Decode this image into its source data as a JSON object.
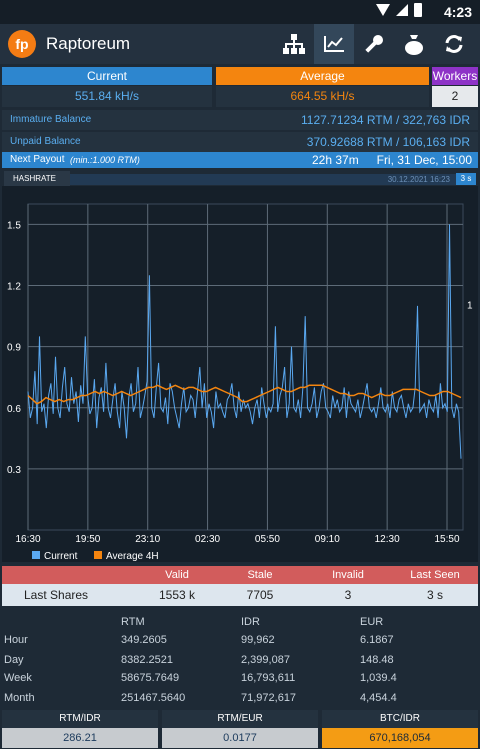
{
  "status_bar": {
    "time": "4:23"
  },
  "app": {
    "title": "Raptoreum",
    "logo_text": "fp"
  },
  "toolbar": {
    "icons": [
      "network-icon",
      "chart-icon",
      "wrench-icon",
      "moneybag-icon",
      "refresh-icon"
    ]
  },
  "stats": {
    "current_label": "Current",
    "current_value": "551.84 kH/s",
    "average_label": "Average",
    "average_value": "664.55 kH/s",
    "workers_label": "Workers",
    "workers_value": "2"
  },
  "balance": {
    "immature_label": "Immature Balance",
    "immature_value": "1127.71234 RTM / 322,763 IDR",
    "unpaid_label": "Unpaid Balance",
    "unpaid_value": "370.92688 RTM / 106,163 IDR"
  },
  "payout": {
    "label": "Next Payout",
    "min_note": "(min.:1.000 RTM)",
    "countdown": "22h 37m",
    "date": "Fri, 31 Dec, 15:00"
  },
  "hashrate_tab": {
    "label": "HASHRATE",
    "timestamp": "30.12.2021 16:23",
    "interval": "3 s"
  },
  "chart_data": {
    "type": "line",
    "x_ticks": [
      "16:30",
      "19:50",
      "23:10",
      "02:30",
      "05:50",
      "09:10",
      "12:30",
      "15:50"
    ],
    "y_ticks": [
      "0.3",
      "0.6",
      "0.9",
      "1.2",
      "1.5"
    ],
    "ylim": [
      0,
      1.6
    ],
    "right_label": "1",
    "series": [
      {
        "name": "Current",
        "color": "#5aa8f0",
        "values": [
          0.68,
          0.55,
          0.6,
          0.78,
          0.52,
          0.95,
          0.58,
          0.62,
          0.5,
          0.66,
          0.72,
          0.57,
          0.85,
          0.6,
          0.55,
          0.7,
          0.8,
          0.62,
          0.58,
          0.75,
          0.62,
          0.68,
          0.53,
          0.71,
          0.62,
          0.95,
          0.66,
          0.57,
          0.6,
          0.74,
          0.5,
          0.65,
          0.7,
          0.58,
          0.82,
          0.6,
          0.55,
          0.64,
          0.72,
          0.58,
          0.5,
          0.68,
          0.6,
          0.45,
          0.65,
          0.72,
          0.58,
          0.62,
          0.8,
          0.55,
          0.6,
          0.66,
          0.73,
          1.25,
          0.6,
          0.55,
          0.7,
          0.82,
          0.6,
          0.58,
          0.65,
          0.52,
          0.72,
          0.68,
          0.6,
          0.55,
          0.5,
          0.62,
          0.7,
          0.58,
          0.6,
          0.66,
          0.64,
          0.55,
          0.68,
          0.8,
          0.6,
          0.72,
          0.55,
          0.62,
          0.58,
          0.5,
          0.68,
          0.6,
          0.62,
          0.58,
          0.55,
          0.64,
          0.66,
          0.72,
          0.6,
          0.55,
          0.68,
          0.58,
          0.64,
          0.6,
          0.62,
          0.58,
          0.52,
          0.6,
          0.64,
          0.55,
          0.7,
          0.62,
          0.55,
          0.6,
          0.58,
          0.62,
          1.0,
          0.58,
          0.66,
          0.7,
          0.8,
          0.55,
          0.62,
          0.9,
          0.6,
          0.58,
          0.64,
          0.55,
          0.7,
          1.05,
          0.6,
          0.58,
          0.62,
          0.7,
          0.55,
          0.6,
          0.68,
          0.72,
          0.6,
          0.58,
          0.55,
          0.66,
          0.6,
          0.64,
          0.58,
          0.6,
          0.7,
          0.55,
          0.68,
          0.62,
          0.6,
          0.58,
          0.64,
          0.55,
          0.6,
          0.66,
          0.72,
          0.6,
          0.58,
          0.6,
          0.55,
          0.62,
          0.7,
          0.6,
          0.58,
          0.62,
          0.55,
          0.68,
          0.6,
          0.58,
          0.64,
          0.66,
          0.6,
          0.55,
          0.62,
          0.58,
          0.6,
          0.7,
          1.1,
          0.58,
          0.6,
          0.62,
          0.55,
          0.64,
          0.6,
          0.58,
          0.66,
          0.55,
          0.72,
          0.6,
          0.62,
          0.58,
          1.5,
          0.6,
          0.55,
          0.62,
          0.58,
          0.35
        ]
      },
      {
        "name": "Average 4H",
        "color": "#f4850f",
        "values": [
          0.66,
          0.64,
          0.62,
          0.63,
          0.65,
          0.64,
          0.63,
          0.64,
          0.63,
          0.64,
          0.64,
          0.65,
          0.66,
          0.66,
          0.67,
          0.68,
          0.67,
          0.68,
          0.67,
          0.66,
          0.67,
          0.68,
          0.67,
          0.66,
          0.67,
          0.68,
          0.69,
          0.7,
          0.7,
          0.71,
          0.7,
          0.69,
          0.7,
          0.71,
          0.7,
          0.69,
          0.7,
          0.7,
          0.69,
          0.68,
          0.68,
          0.69,
          0.7,
          0.69,
          0.68,
          0.67,
          0.66,
          0.65,
          0.63,
          0.63,
          0.64,
          0.65,
          0.66,
          0.67,
          0.68,
          0.69,
          0.7,
          0.69,
          0.68,
          0.68,
          0.69,
          0.7,
          0.7,
          0.71,
          0.71,
          0.71,
          0.71,
          0.7,
          0.69,
          0.68,
          0.67,
          0.67,
          0.66,
          0.66,
          0.67,
          0.67,
          0.66,
          0.65,
          0.66,
          0.67,
          0.66,
          0.66,
          0.67,
          0.68,
          0.69,
          0.69,
          0.69,
          0.69,
          0.68,
          0.67,
          0.66,
          0.66,
          0.67,
          0.68,
          0.68,
          0.67,
          0.66,
          0.65
        ]
      }
    ]
  },
  "shares": {
    "headers": [
      "",
      "Valid",
      "Stale",
      "Invalid",
      "Last Seen"
    ],
    "row_label": "Last Shares",
    "valid": "1553 k",
    "stale": "7705",
    "invalid": "3",
    "last_seen": "3 s"
  },
  "earnings": {
    "columns": [
      "RTM",
      "IDR",
      "EUR"
    ],
    "rows": [
      {
        "label": "Hour",
        "rtm": "349.2605",
        "idr": "99,962",
        "eur": "6.1867"
      },
      {
        "label": "Day",
        "rtm": "8382.2521",
        "idr": "2,399,087",
        "eur": "148.48"
      },
      {
        "label": "Week",
        "rtm": "58675.7649",
        "idr": "16,793,611",
        "eur": "1,039.4"
      },
      {
        "label": "Month",
        "rtm": "251467.5640",
        "idr": "71,972,617",
        "eur": "4,454.4"
      }
    ]
  },
  "rates": [
    {
      "label": "RTM/IDR",
      "value": "286.21"
    },
    {
      "label": "RTM/EUR",
      "value": "0.0177"
    },
    {
      "label": "BTC/IDR",
      "value": "670,168,054"
    }
  ]
}
